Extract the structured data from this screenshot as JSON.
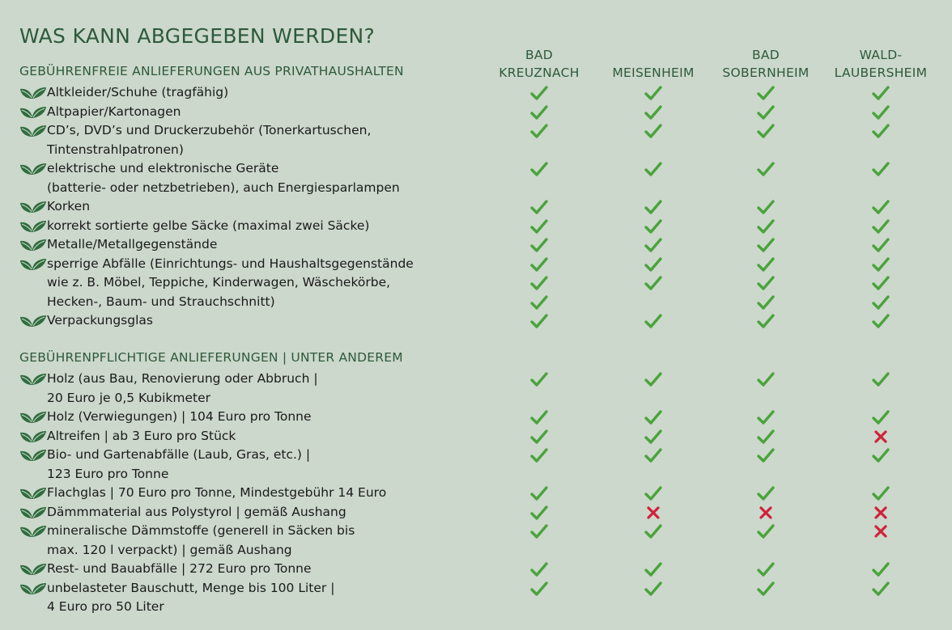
{
  "title": "WAS KANN ABGEGEBEN WERDEN?",
  "columns": [
    {
      "lines": [
        "BAD",
        "KREUZNACH"
      ]
    },
    {
      "lines": [
        "",
        "MEISENHEIM"
      ]
    },
    {
      "lines": [
        "BAD",
        "SOBERNHEIM"
      ]
    },
    {
      "lines": [
        "WALD-",
        "LAUBERSHEIM"
      ]
    }
  ],
  "sections": [
    {
      "title": "GEBÜHRENFREIE ANLIEFERUNGEN AUS PRIVATHAUSHALTEN",
      "items": [
        {
          "lines": [
            "Altkleider/Schuhe (tragfähig)"
          ],
          "marks": [
            [
              "yes",
              "yes",
              "yes",
              "yes"
            ]
          ]
        },
        {
          "lines": [
            "Altpapier/Kartonagen"
          ],
          "marks": [
            [
              "yes",
              "yes",
              "yes",
              "yes"
            ]
          ]
        },
        {
          "lines": [
            "CD’s, DVD’s und Druckerzubehör (Tonerkartuschen,",
            "Tintenstrahlpatronen)"
          ],
          "marks": [
            [
              "yes",
              "yes",
              "yes",
              "yes"
            ]
          ]
        },
        {
          "lines": [
            "elektrische und elektronische Geräte",
            "(batterie- oder netzbetrieben), auch Energiesparlampen"
          ],
          "marks": [
            [
              "yes",
              "yes",
              "yes",
              "yes"
            ]
          ]
        },
        {
          "lines": [
            "Korken"
          ],
          "marks": [
            [
              "yes",
              "yes",
              "yes",
              "yes"
            ]
          ]
        },
        {
          "lines": [
            "korrekt sortierte gelbe Säcke (maximal zwei Säcke)"
          ],
          "marks": [
            [
              "yes",
              "yes",
              "yes",
              "yes"
            ]
          ]
        },
        {
          "lines": [
            "Metalle/Metallgegenstände"
          ],
          "marks": [
            [
              "yes",
              "yes",
              "yes",
              "yes"
            ]
          ]
        },
        {
          "lines": [
            "sperrige Abfälle (Einrichtungs- und Haushaltsgegenstände",
            "wie z. B. Möbel, Teppiche, Kinderwagen, Wäschekörbe,",
            "Hecken-, Baum- und Strauchschnitt)"
          ],
          "marks": [
            [
              "yes",
              "yes",
              "yes",
              "yes"
            ],
            [
              "yes",
              "yes",
              "yes",
              "yes"
            ],
            [
              "yes",
              "",
              "yes",
              "yes"
            ]
          ]
        },
        {
          "lines": [
            "Verpackungsglas"
          ],
          "marks": [
            [
              "yes",
              "yes",
              "yes",
              "yes"
            ]
          ]
        }
      ]
    },
    {
      "title": "GEBÜHRENPFLICHTIGE ANLIEFERUNGEN | UNTER ANDEREM",
      "items": [
        {
          "lines": [
            "Holz (aus Bau, Renovierung oder Abbruch |",
            "20 Euro je 0,5 Kubikmeter"
          ],
          "marks": [
            [
              "yes",
              "yes",
              "yes",
              "yes"
            ]
          ]
        },
        {
          "lines": [
            "Holz (Verwiegungen) | 104 Euro pro Tonne"
          ],
          "marks": [
            [
              "yes",
              "yes",
              "yes",
              "yes"
            ]
          ]
        },
        {
          "lines": [
            "Altreifen | ab 3 Euro pro Stück"
          ],
          "marks": [
            [
              "yes",
              "yes",
              "yes",
              "no"
            ]
          ]
        },
        {
          "lines": [
            "Bio- und Gartenabfälle (Laub, Gras, etc.) |",
            "123 Euro pro Tonne"
          ],
          "marks": [
            [
              "yes",
              "yes",
              "yes",
              "yes"
            ]
          ]
        },
        {
          "lines": [
            "Flachglas | 70 Euro pro Tonne, Mindestgebühr 14 Euro"
          ],
          "marks": [
            [
              "yes",
              "yes",
              "yes",
              "yes"
            ]
          ]
        },
        {
          "lines": [
            "Dämmmaterial aus Polystyrol | gemäß Aushang"
          ],
          "marks": [
            [
              "yes",
              "no",
              "no",
              "no"
            ]
          ]
        },
        {
          "lines": [
            "mineralische Dämmstoffe (generell in Säcken bis",
            "max. 120 l verpackt) | gemäß Aushang"
          ],
          "marks": [
            [
              "yes",
              "yes",
              "yes",
              "no"
            ]
          ]
        },
        {
          "lines": [
            "Rest- und Bauabfälle | 272 Euro pro Tonne"
          ],
          "marks": [
            [
              "yes",
              "yes",
              "yes",
              "yes"
            ]
          ]
        },
        {
          "lines": [
            "unbelasteter Bauschutt, Menge bis 100 Liter |",
            "4 Euro pro 50 Liter"
          ],
          "marks": [
            [
              "yes",
              "yes",
              "yes",
              "yes"
            ]
          ]
        }
      ]
    }
  ],
  "colors": {
    "check": "#4aa33c",
    "cross": "#d0223a",
    "leaf": "#2f6d3d",
    "heading": "#2d5a3b"
  },
  "icons": {
    "bullet": "leaf-icon",
    "yes": "check-icon",
    "no": "cross-icon"
  }
}
